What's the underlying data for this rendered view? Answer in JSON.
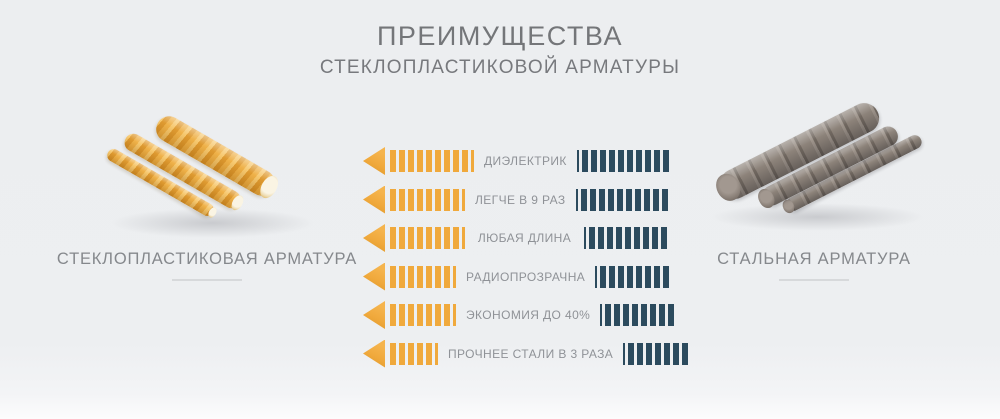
{
  "title": {
    "line1": "ПРЕИМУЩЕСТВА",
    "line2": "СТЕКЛОПЛАСТИКОВОЙ АРМАТУРЫ"
  },
  "left_product": {
    "label": "СТЕКЛОПЛАСТИКОВАЯ АРМАТУРА"
  },
  "right_product": {
    "label": "СТАЛЬНАЯ АРМАТУРА"
  },
  "advantages": [
    {
      "label": "ДИЭЛЕКТРИК",
      "orange_segments": 10,
      "navy_segments": 11
    },
    {
      "label": "ЛЕГЧЕ В 9 РАЗ",
      "orange_segments": 9,
      "navy_segments": 11
    },
    {
      "label": "ЛЮБАЯ ДЛИНА",
      "orange_segments": 9,
      "navy_segments": 10
    },
    {
      "label": "РАДИОПРОЗРАЧНА",
      "orange_segments": 8,
      "navy_segments": 9
    },
    {
      "label": "ЭКОНОМИЯ ДО 40%",
      "orange_segments": 8,
      "navy_segments": 9
    },
    {
      "label": "ПРОЧНЕЕ СТАЛИ В 3 РАЗА",
      "orange_segments": 6,
      "navy_segments": 8
    }
  ],
  "colors": {
    "accent_orange": "#f0a93c",
    "accent_orange_light": "#f5b44d",
    "accent_navy": "#2c4b5e",
    "background": "#edeff1"
  }
}
